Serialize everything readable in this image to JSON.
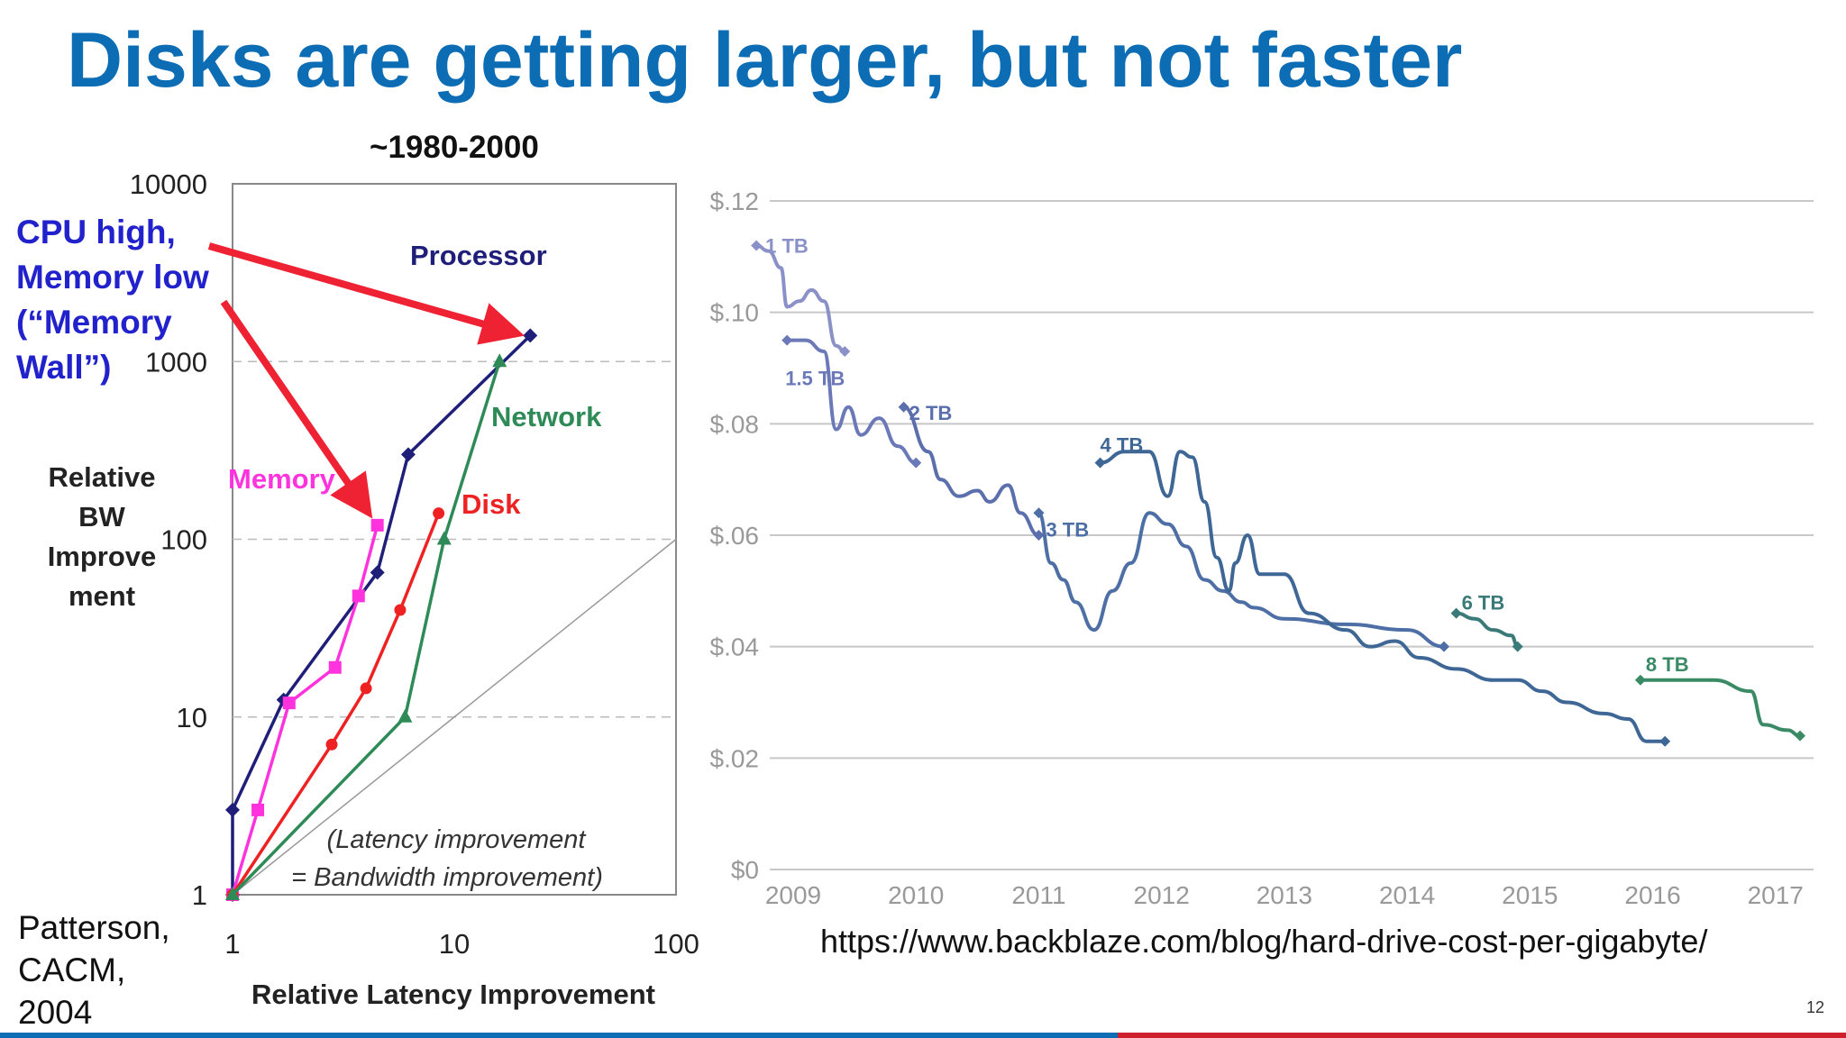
{
  "slide": {
    "title": "Disks are getting larger, but not faster",
    "period_label": "~1980-2000",
    "citation_lines": [
      "Patterson,",
      "CACM,",
      "2004"
    ],
    "source_url": "https://www.backblaze.com/blog/hard-drive-cost-per-gigabyte/",
    "slide_number": "12",
    "colors": {
      "title": "#0c6db5",
      "footer_left": "#0c6db5",
      "footer_right": "#d0202e"
    }
  },
  "chart_data": [
    {
      "type": "line",
      "x_scale": "log",
      "y_scale": "log",
      "xlabel": "Relative Latency Improvement",
      "ylabel_lines": [
        "Relative",
        "BW",
        "Improve",
        "ment"
      ],
      "xlim": [
        1,
        100
      ],
      "ylim": [
        1,
        10000
      ],
      "x_ticks": [
        1,
        10,
        100
      ],
      "y_ticks": [
        1,
        10,
        100,
        1000,
        10000
      ],
      "x_tick_labels": [
        "1",
        "10",
        "100"
      ],
      "y_tick_labels": [
        "1",
        "10",
        "100",
        "1000",
        "10000"
      ],
      "grid": "dashed horizontal",
      "series": [
        {
          "name": "Processor",
          "color": "#1f1f7a",
          "marker": "diamond",
          "points": [
            [
              1,
              1
            ],
            [
              1,
              3
            ],
            [
              1.7,
              12.5
            ],
            [
              4.5,
              65
            ],
            [
              6.2,
              300
            ],
            [
              22,
              1400
            ]
          ]
        },
        {
          "name": "Memory",
          "color": "#ff33dd",
          "marker": "square",
          "points": [
            [
              1,
              1
            ],
            [
              1.3,
              3
            ],
            [
              1.8,
              12
            ],
            [
              2.9,
              19
            ],
            [
              3.7,
              48
            ],
            [
              4.5,
              120
            ]
          ]
        },
        {
          "name": "Disk",
          "color": "#ee2222",
          "marker": "circle",
          "points": [
            [
              1,
              1
            ],
            [
              2.8,
              7
            ],
            [
              4,
              14.5
            ],
            [
              5.7,
              40
            ],
            [
              8.5,
              140
            ]
          ]
        },
        {
          "name": "Network",
          "color": "#2e8b57",
          "marker": "triangle",
          "points": [
            [
              1,
              1
            ],
            [
              6,
              10
            ],
            [
              9,
              100
            ],
            [
              16,
              1000
            ]
          ]
        }
      ],
      "reference_line": {
        "points": [
          [
            1,
            1
          ],
          [
            100,
            100
          ]
        ],
        "label_lines": [
          "(Latency improvement",
          "= Bandwidth improvement)"
        ]
      },
      "annotation": {
        "lines": [
          "CPU high,",
          "Memory low",
          "(“Memory",
          "Wall”)"
        ],
        "color": "#2222cc",
        "arrow_color": "#ee2233",
        "arrow_targets": [
          [
            22,
            1400
          ],
          [
            4.5,
            120
          ]
        ]
      }
    },
    {
      "type": "line",
      "xlabel": "",
      "ylabel": "",
      "xlim": [
        2009,
        2017.2
      ],
      "ylim": [
        0,
        0.12
      ],
      "x_ticks": [
        2009,
        2010,
        2011,
        2012,
        2013,
        2014,
        2015,
        2016,
        2017
      ],
      "x_tick_labels": [
        "2009",
        "2010",
        "2011",
        "2012",
        "2013",
        "2014",
        "2015",
        "2016",
        "2017"
      ],
      "y_ticks": [
        0,
        0.02,
        0.04,
        0.06,
        0.08,
        0.1,
        0.12
      ],
      "y_tick_labels": [
        "$0",
        "$.02",
        "$.04",
        "$.06",
        "$.08",
        "$.10",
        "$.12"
      ],
      "grid": "horizontal",
      "series": [
        {
          "name": "1 TB",
          "color": "#8a90c8",
          "points": [
            [
              2008.7,
              0.112
            ],
            [
              2008.8,
              0.111
            ],
            [
              2008.9,
              0.108
            ],
            [
              2008.95,
              0.101
            ],
            [
              2009.05,
              0.102
            ],
            [
              2009.15,
              0.104
            ],
            [
              2009.25,
              0.102
            ],
            [
              2009.35,
              0.094
            ],
            [
              2009.42,
              0.093
            ]
          ]
        },
        {
          "name": "1.5 TB",
          "color": "#6b79b8",
          "points": [
            [
              2008.95,
              0.095
            ],
            [
              2009.1,
              0.095
            ],
            [
              2009.25,
              0.093
            ],
            [
              2009.35,
              0.079
            ],
            [
              2009.45,
              0.083
            ],
            [
              2009.55,
              0.078
            ],
            [
              2009.7,
              0.081
            ],
            [
              2009.85,
              0.076
            ],
            [
              2010.0,
              0.073
            ]
          ]
        },
        {
          "name": "2 TB",
          "color": "#5b6fad",
          "points": [
            [
              2009.9,
              0.083
            ],
            [
              2010.1,
              0.075
            ],
            [
              2010.2,
              0.07
            ],
            [
              2010.35,
              0.067
            ],
            [
              2010.5,
              0.068
            ],
            [
              2010.6,
              0.066
            ],
            [
              2010.75,
              0.069
            ],
            [
              2010.85,
              0.064
            ],
            [
              2011.0,
              0.06
            ]
          ]
        },
        {
          "name": "3 TB",
          "color": "#4d6fa5",
          "points": [
            [
              2011.0,
              0.064
            ],
            [
              2011.1,
              0.055
            ],
            [
              2011.2,
              0.052
            ],
            [
              2011.3,
              0.048
            ],
            [
              2011.45,
              0.043
            ],
            [
              2011.6,
              0.05
            ],
            [
              2011.75,
              0.055
            ],
            [
              2011.9,
              0.064
            ],
            [
              2012.05,
              0.062
            ],
            [
              2012.2,
              0.058
            ],
            [
              2012.35,
              0.052
            ],
            [
              2012.5,
              0.05
            ],
            [
              2012.65,
              0.048
            ],
            [
              2012.75,
              0.047
            ],
            [
              2013.0,
              0.045
            ],
            [
              2013.5,
              0.044
            ],
            [
              2014.0,
              0.043
            ],
            [
              2014.3,
              0.04
            ]
          ]
        },
        {
          "name": "4 TB",
          "color": "#3e6796",
          "points": [
            [
              2011.5,
              0.073
            ],
            [
              2011.7,
              0.075
            ],
            [
              2011.9,
              0.075
            ],
            [
              2012.05,
              0.067
            ],
            [
              2012.15,
              0.075
            ],
            [
              2012.25,
              0.074
            ],
            [
              2012.35,
              0.066
            ],
            [
              2012.45,
              0.056
            ],
            [
              2012.55,
              0.05
            ],
            [
              2012.6,
              0.055
            ],
            [
              2012.7,
              0.06
            ],
            [
              2012.8,
              0.053
            ],
            [
              2013.0,
              0.053
            ],
            [
              2013.2,
              0.046
            ],
            [
              2013.5,
              0.043
            ],
            [
              2013.7,
              0.04
            ],
            [
              2013.9,
              0.041
            ],
            [
              2014.1,
              0.038
            ],
            [
              2014.4,
              0.036
            ],
            [
              2014.7,
              0.034
            ],
            [
              2014.9,
              0.034
            ],
            [
              2015.1,
              0.032
            ],
            [
              2015.3,
              0.03
            ],
            [
              2015.6,
              0.028
            ],
            [
              2015.8,
              0.027
            ],
            [
              2015.95,
              0.023
            ],
            [
              2016.1,
              0.023
            ]
          ]
        },
        {
          "name": "6 TB",
          "color": "#3a7a78",
          "points": [
            [
              2014.4,
              0.046
            ],
            [
              2014.55,
              0.045
            ],
            [
              2014.7,
              0.043
            ],
            [
              2014.85,
              0.042
            ],
            [
              2014.9,
              0.04
            ]
          ]
        },
        {
          "name": "8 TB",
          "color": "#3a8a66",
          "points": [
            [
              2015.9,
              0.034
            ],
            [
              2016.1,
              0.034
            ],
            [
              2016.5,
              0.034
            ],
            [
              2016.8,
              0.032
            ],
            [
              2016.9,
              0.026
            ],
            [
              2017.1,
              0.025
            ],
            [
              2017.2,
              0.024
            ]
          ]
        }
      ]
    }
  ]
}
